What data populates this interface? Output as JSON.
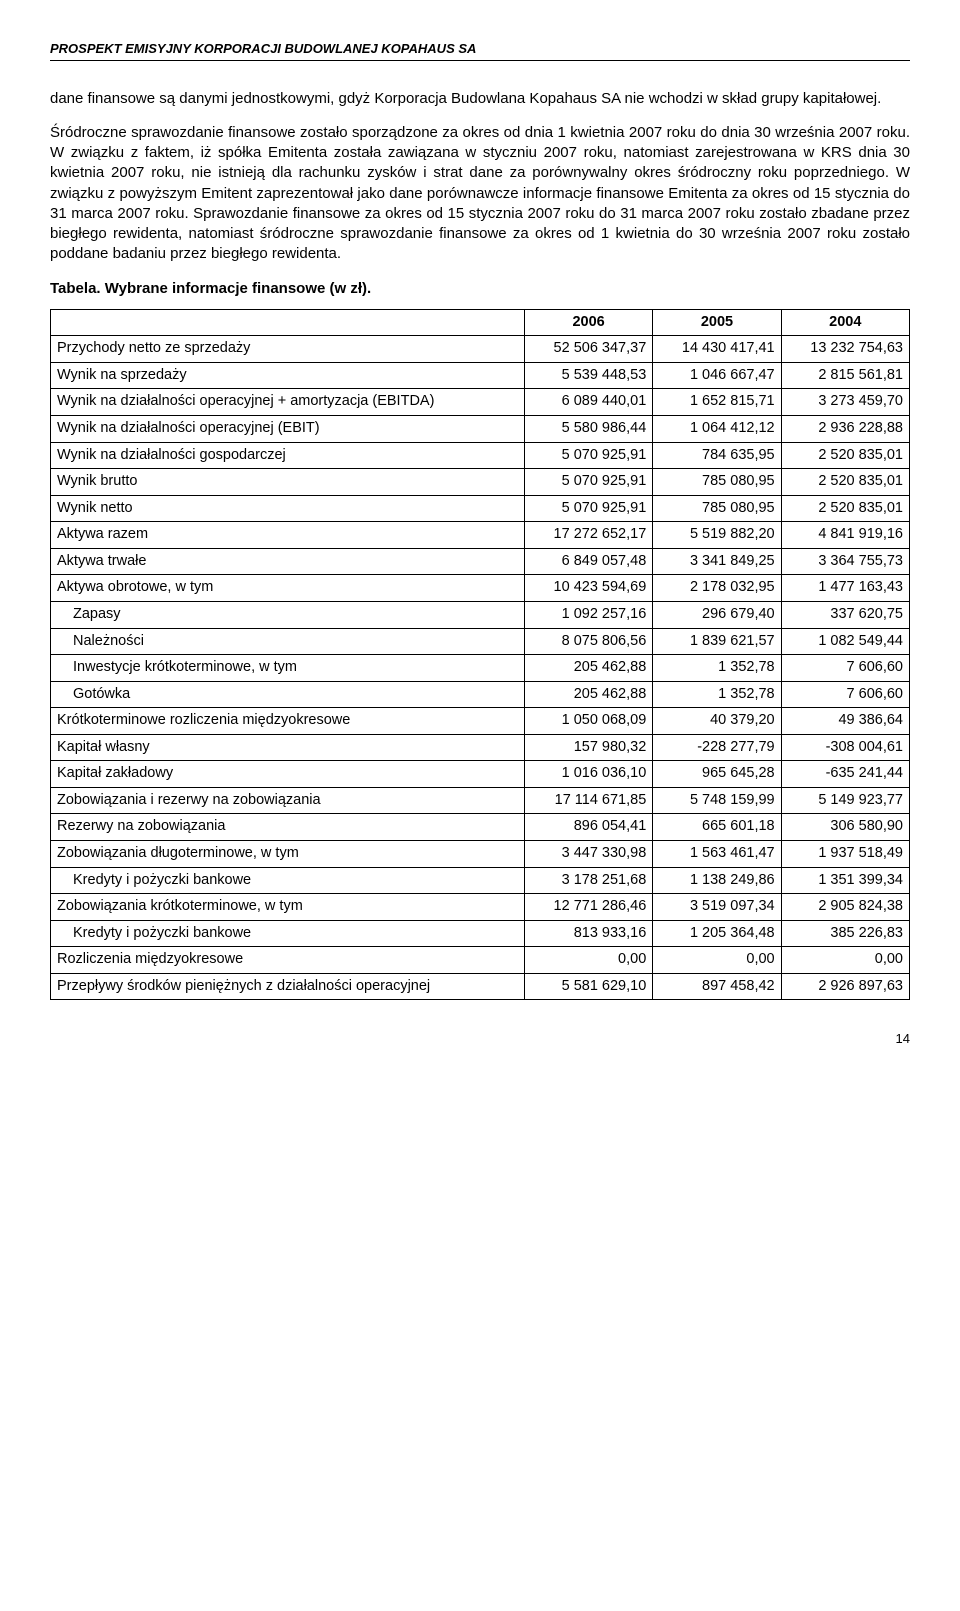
{
  "header": "PROSPEKT EMISYJNY KORPORACJI BUDOWLANEJ KOPAHAUS SA",
  "para1": "dane finansowe są danymi jednostkowymi, gdyż Korporacja Budowlana Kopahaus SA nie wchodzi w skład grupy kapitałowej.",
  "para2": "Śródroczne sprawozdanie finansowe zostało sporządzone za okres od dnia 1 kwietnia 2007 roku do dnia 30 września 2007 roku. W związku z faktem, iż spółka Emitenta została zawiązana w styczniu 2007 roku, natomiast zarejestrowana w KRS dnia 30 kwietnia 2007 roku, nie istnieją dla rachunku zysków i strat dane za porównywalny okres śródroczny roku poprzedniego. W związku z powyższym Emitent zaprezentował jako dane porównawcze informacje finansowe Emitenta za okres od 15 stycznia do 31 marca 2007 roku. Sprawozdanie finansowe za okres od 15 stycznia 2007 roku do 31 marca 2007 roku zostało zbadane przez biegłego rewidenta, natomiast śródroczne sprawozdanie finansowe za okres od 1 kwietnia do 30 września 2007 roku zostało poddane badaniu przez biegłego rewidenta.",
  "tableTitle": "Tabela. Wybrane informacje finansowe (w zł).",
  "cols": [
    "",
    "2006",
    "2005",
    "2004"
  ],
  "rows": [
    {
      "l": "Przychody netto ze sprzedaży",
      "a": "52 506 347,37",
      "b": "14 430 417,41",
      "c": "13 232 754,63"
    },
    {
      "l": "Wynik na sprzedaży",
      "a": "5 539 448,53",
      "b": "1 046 667,47",
      "c": "2 815 561,81"
    },
    {
      "l": "Wynik na działalności operacyjnej + amortyzacja (EBITDA)",
      "a": "6 089 440,01",
      "b": "1 652 815,71",
      "c": "3 273 459,70"
    },
    {
      "l": "Wynik na działalności operacyjnej (EBIT)",
      "a": "5 580 986,44",
      "b": "1 064 412,12",
      "c": "2 936 228,88"
    },
    {
      "l": "Wynik na działalności gospodarczej",
      "a": "5 070 925,91",
      "b": "784 635,95",
      "c": "2 520 835,01"
    },
    {
      "l": "Wynik brutto",
      "a": "5 070 925,91",
      "b": "785 080,95",
      "c": "2 520 835,01"
    },
    {
      "l": "Wynik netto",
      "a": "5 070 925,91",
      "b": "785 080,95",
      "c": "2 520 835,01"
    },
    {
      "l": "Aktywa razem",
      "a": "17 272 652,17",
      "b": "5 519 882,20",
      "c": "4 841 919,16"
    },
    {
      "l": "Aktywa trwałe",
      "a": "6 849 057,48",
      "b": "3 341 849,25",
      "c": "3 364 755,73"
    },
    {
      "l": "Aktywa obrotowe, w tym",
      "a": "10 423 594,69",
      "b": "2 178 032,95",
      "c": "1 477 163,43"
    },
    {
      "l": "Zapasy",
      "a": "1 092 257,16",
      "b": "296 679,40",
      "c": "337 620,75",
      "indent": true
    },
    {
      "l": "Należności",
      "a": "8 075 806,56",
      "b": "1 839 621,57",
      "c": "1 082 549,44",
      "indent": true
    },
    {
      "l": "Inwestycje krótkoterminowe, w tym",
      "a": "205 462,88",
      "b": "1 352,78",
      "c": "7 606,60",
      "indent": true
    },
    {
      "l": "Gotówka",
      "a": "205 462,88",
      "b": "1 352,78",
      "c": "7 606,60",
      "indent": true
    },
    {
      "l": "Krótkoterminowe rozliczenia międzyokresowe",
      "a": "1 050 068,09",
      "b": "40 379,20",
      "c": "49 386,64"
    },
    {
      "l": "Kapitał własny",
      "a": "157 980,32",
      "b": "-228 277,79",
      "c": "-308 004,61"
    },
    {
      "l": "Kapitał zakładowy",
      "a": "1 016 036,10",
      "b": "965 645,28",
      "c": "-635 241,44"
    },
    {
      "l": "Zobowiązania i rezerwy na zobowiązania",
      "a": "17 114 671,85",
      "b": "5 748 159,99",
      "c": "5 149 923,77"
    },
    {
      "l": "Rezerwy na zobowiązania",
      "a": "896 054,41",
      "b": "665 601,18",
      "c": "306 580,90"
    },
    {
      "l": "Zobowiązania długoterminowe, w tym",
      "a": "3 447 330,98",
      "b": "1 563 461,47",
      "c": "1 937 518,49"
    },
    {
      "l": "Kredyty i pożyczki bankowe",
      "a": "3 178 251,68",
      "b": "1 138 249,86",
      "c": "1 351 399,34",
      "indent": true
    },
    {
      "l": "Zobowiązania krótkoterminowe, w tym",
      "a": "12 771 286,46",
      "b": "3 519 097,34",
      "c": "2 905 824,38"
    },
    {
      "l": "Kredyty i pożyczki bankowe",
      "a": "813 933,16",
      "b": "1 205 364,48",
      "c": "385 226,83",
      "indent": true
    },
    {
      "l": "Rozliczenia międzyokresowe",
      "a": "0,00",
      "b": "0,00",
      "c": "0,00"
    },
    {
      "l": "Przepływy środków pieniężnych z działalności operacyjnej",
      "a": "5 581 629,10",
      "b": "897 458,42",
      "c": "2 926 897,63"
    }
  ],
  "pageNumber": "14"
}
